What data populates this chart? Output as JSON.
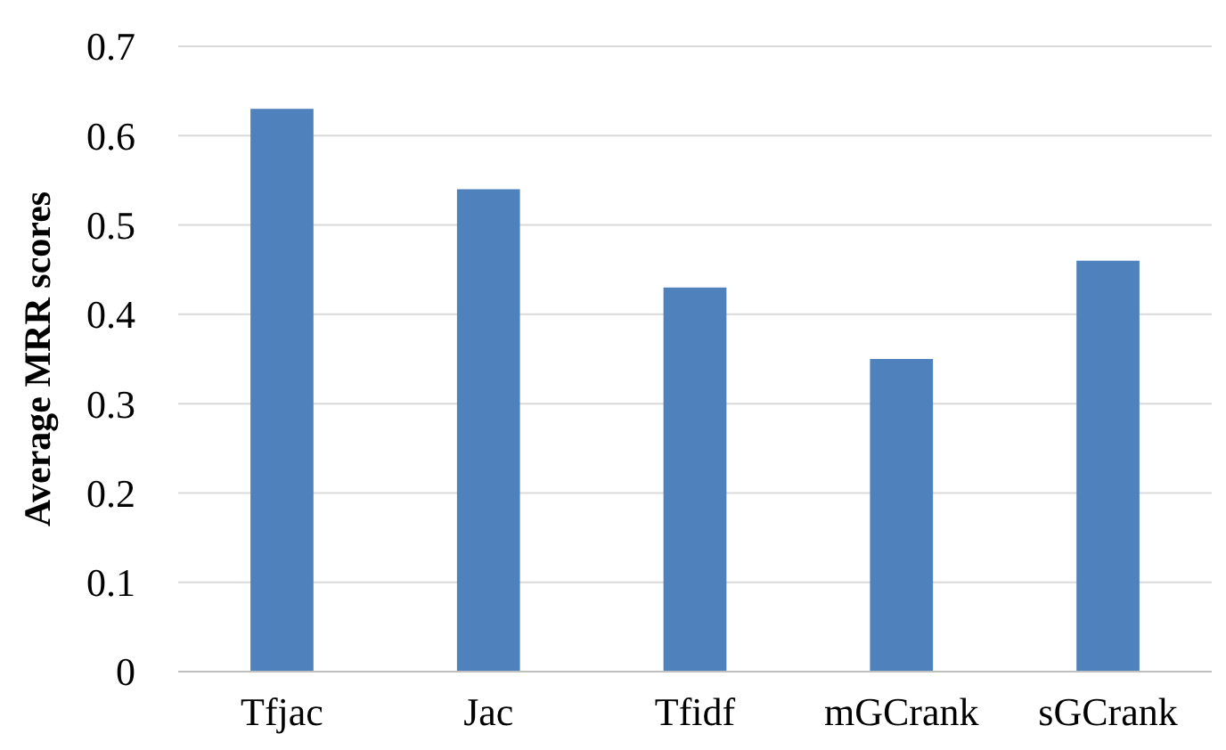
{
  "chart_data": {
    "type": "bar",
    "ylabel": "Average MRR scores",
    "categories": [
      "Tfjac",
      "Jac",
      "Tfidf",
      "mGCrank",
      "sGCrank"
    ],
    "values": [
      0.63,
      0.54,
      0.43,
      0.35,
      0.46
    ],
    "color": "#4f81bd",
    "ylim": [
      0,
      0.7
    ],
    "yticks": [
      0,
      0.1,
      0.2,
      0.3,
      0.4,
      0.5,
      0.6,
      0.7
    ],
    "grid": "y"
  }
}
